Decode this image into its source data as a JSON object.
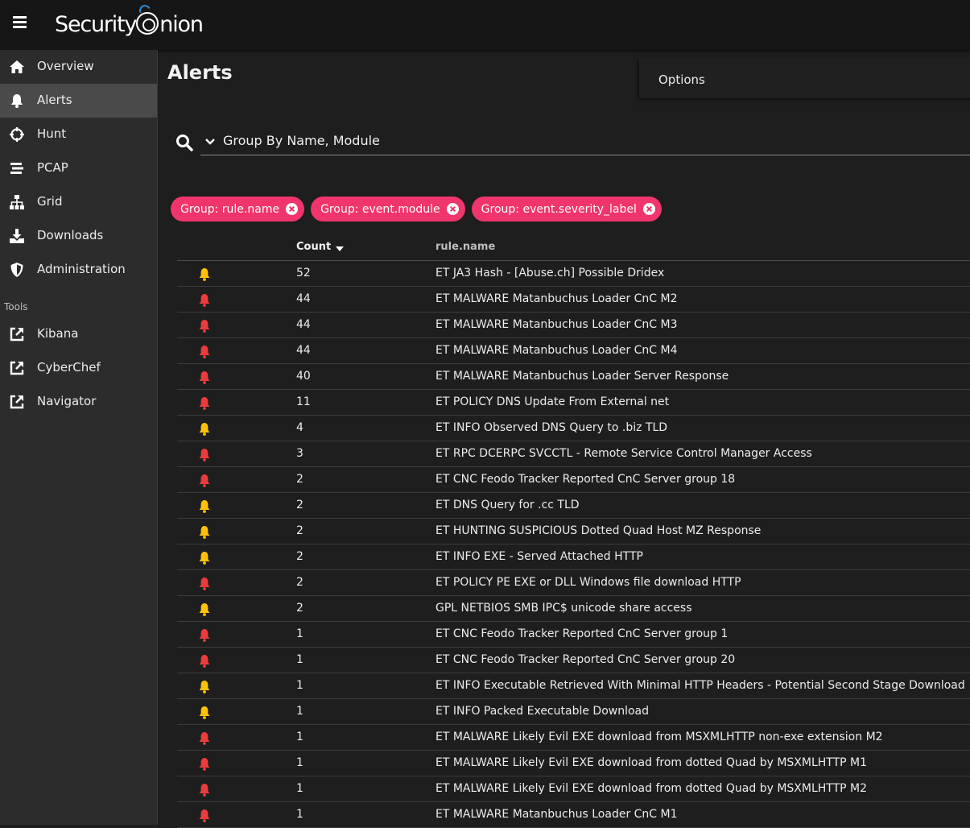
{
  "header": {
    "logo_text_left": "Security",
    "logo_text_right": "nion"
  },
  "colors": {
    "accent": "#f0356c",
    "severity_high": "#ec3b3b",
    "severity_medium": "#ffc107",
    "background": "#1e1e1e",
    "sidebar": "#2c2c2c"
  },
  "sidebar": {
    "items": [
      {
        "label": "Overview",
        "icon": "home-icon"
      },
      {
        "label": "Alerts",
        "icon": "bell-icon",
        "active": true
      },
      {
        "label": "Hunt",
        "icon": "crosshairs-icon"
      },
      {
        "label": "PCAP",
        "icon": "stream-icon"
      },
      {
        "label": "Grid",
        "icon": "sitemap-icon"
      },
      {
        "label": "Downloads",
        "icon": "download-icon"
      },
      {
        "label": "Administration",
        "icon": "shield-icon"
      }
    ],
    "tools_label": "Tools",
    "tools": [
      {
        "label": "Kibana",
        "icon": "external-link-icon"
      },
      {
        "label": "CyberChef",
        "icon": "external-link-icon"
      },
      {
        "label": "Navigator",
        "icon": "external-link-icon"
      }
    ]
  },
  "main": {
    "title": "Alerts",
    "options_label": "Options",
    "search": {
      "value": "Group By Name, Module"
    },
    "chips": [
      "Group: rule.name",
      "Group: event.module",
      "Group: event.severity_label"
    ],
    "table": {
      "columns": [
        "Count",
        "rule.name"
      ],
      "rows": [
        {
          "severity": "medium",
          "count": "52",
          "rule": "ET JA3 Hash - [Abuse.ch] Possible Dridex"
        },
        {
          "severity": "high",
          "count": "44",
          "rule": "ET MALWARE Matanbuchus Loader CnC M2"
        },
        {
          "severity": "high",
          "count": "44",
          "rule": "ET MALWARE Matanbuchus Loader CnC M3"
        },
        {
          "severity": "high",
          "count": "44",
          "rule": "ET MALWARE Matanbuchus Loader CnC M4"
        },
        {
          "severity": "high",
          "count": "40",
          "rule": "ET MALWARE Matanbuchus Loader Server Response"
        },
        {
          "severity": "high",
          "count": "11",
          "rule": "ET POLICY DNS Update From External net"
        },
        {
          "severity": "medium",
          "count": "4",
          "rule": "ET INFO Observed DNS Query to .biz TLD"
        },
        {
          "severity": "high",
          "count": "3",
          "rule": "ET RPC DCERPC SVCCTL - Remote Service Control Manager Access"
        },
        {
          "severity": "high",
          "count": "2",
          "rule": "ET CNC Feodo Tracker Reported CnC Server group 18"
        },
        {
          "severity": "medium",
          "count": "2",
          "rule": "ET DNS Query for .cc TLD"
        },
        {
          "severity": "medium",
          "count": "2",
          "rule": "ET HUNTING SUSPICIOUS Dotted Quad Host MZ Response"
        },
        {
          "severity": "medium",
          "count": "2",
          "rule": "ET INFO EXE - Served Attached HTTP"
        },
        {
          "severity": "high",
          "count": "2",
          "rule": "ET POLICY PE EXE or DLL Windows file download HTTP"
        },
        {
          "severity": "medium",
          "count": "2",
          "rule": "GPL NETBIOS SMB IPC$ unicode share access"
        },
        {
          "severity": "high",
          "count": "1",
          "rule": "ET CNC Feodo Tracker Reported CnC Server group 1"
        },
        {
          "severity": "high",
          "count": "1",
          "rule": "ET CNC Feodo Tracker Reported CnC Server group 20"
        },
        {
          "severity": "medium",
          "count": "1",
          "rule": "ET INFO Executable Retrieved With Minimal HTTP Headers - Potential Second Stage Download"
        },
        {
          "severity": "medium",
          "count": "1",
          "rule": "ET INFO Packed Executable Download"
        },
        {
          "severity": "high",
          "count": "1",
          "rule": "ET MALWARE Likely Evil EXE download from MSXMLHTTP non-exe extension M2"
        },
        {
          "severity": "high",
          "count": "1",
          "rule": "ET MALWARE Likely Evil EXE download from dotted Quad by MSXMLHTTP M1"
        },
        {
          "severity": "high",
          "count": "1",
          "rule": "ET MALWARE Likely Evil EXE download from dotted Quad by MSXMLHTTP M2"
        },
        {
          "severity": "high",
          "count": "1",
          "rule": "ET MALWARE Matanbuchus Loader CnC M1"
        }
      ]
    }
  }
}
